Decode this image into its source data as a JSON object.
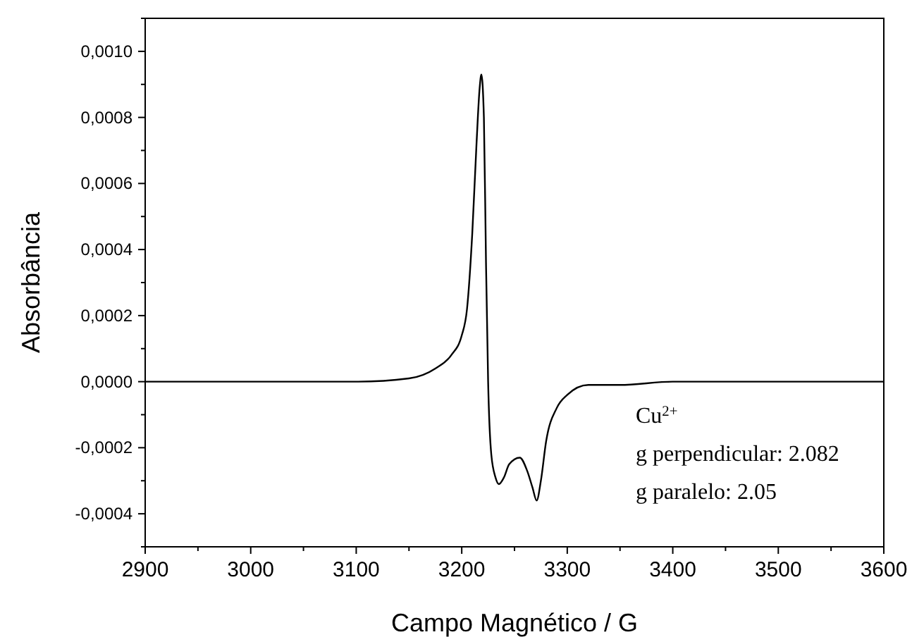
{
  "chart_data": {
    "type": "line",
    "xlabel": "Campo Magnético / G",
    "ylabel": "Absorbância",
    "annotations": [
      "Cu$^{2+}$",
      "g perpendicular: 2.082",
      "g paralelo: 2.05"
    ],
    "x": [
      2900,
      3000,
      3100,
      3150,
      3175,
      3190,
      3200,
      3205,
      3210,
      3214,
      3217,
      3218.6,
      3221,
      3223,
      3225,
      3228,
      3232,
      3235.2,
      3240,
      3245,
      3255,
      3262,
      3267,
      3271,
      3275,
      3280,
      3290,
      3300,
      3320,
      3350,
      3400,
      3500,
      3600
    ],
    "series": [
      {
        "color": "#000000",
        "values": [
          0,
          0,
          0,
          1e-05,
          4e-05,
          8e-05,
          0.00014,
          0.00022,
          0.00045,
          0.00072,
          0.00089,
          0.00093,
          0.0008,
          0.00036,
          0,
          -0.00022,
          -0.00029,
          -0.00031,
          -0.00029,
          -0.00025,
          -0.00023,
          -0.00027,
          -0.00032,
          -0.00036,
          -0.0003,
          -0.00018,
          -8e-05,
          -4e-05,
          -1e-05,
          -1e-05,
          0,
          0,
          0
        ]
      }
    ],
    "xlim": [
      2900,
      3600
    ],
    "ylim": [
      -0.0005,
      0.0011
    ],
    "xticks": [
      2900,
      {
        "value": 2950,
        "label": null
      },
      3000,
      {
        "value": 3050,
        "label": null
      },
      3100,
      {
        "value": 3150,
        "label": null
      },
      3200,
      {
        "value": 3250,
        "label": null
      },
      3300,
      {
        "value": 3350,
        "label": null
      },
      3400,
      {
        "value": 3450,
        "label": null
      },
      3500,
      {
        "value": 3550,
        "label": null
      },
      3600
    ],
    "yticks": [
      {
        "value": -0.0005,
        "label": null
      },
      {
        "value": -0.0004,
        "label": "-0,0004"
      },
      {
        "value": -0.0003,
        "label": null
      },
      {
        "value": -0.0002,
        "label": "-0,0002"
      },
      {
        "value": -0.0001,
        "label": null
      },
      {
        "value": 0,
        "label": "0,0000"
      },
      {
        "value": 0.0001,
        "label": null
      },
      {
        "value": 0.0002,
        "label": "0,0002"
      },
      {
        "value": 0.0003,
        "label": null
      },
      {
        "value": 0.0004,
        "label": "0,0004"
      },
      {
        "value": 0.0005,
        "label": null
      },
      {
        "value": 0.0006,
        "label": "0,0006"
      },
      {
        "value": 0.0007,
        "label": null
      },
      {
        "value": 0.0008,
        "label": "0,0008"
      },
      {
        "value": 0.0009,
        "label": null
      },
      {
        "value": 0.001,
        "label": "0,0010"
      },
      {
        "value": 0.0011,
        "label": null
      }
    ],
    "grid": false,
    "marker": "none",
    "line_style": "solid"
  }
}
